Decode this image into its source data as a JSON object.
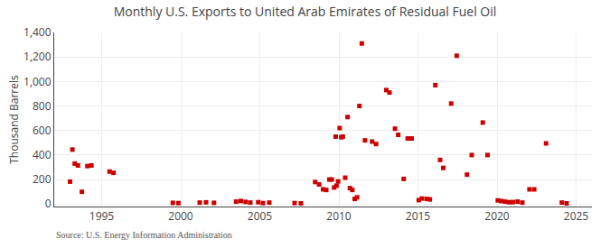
{
  "chart_data": {
    "type": "scatter",
    "title": "Monthly U.S. Exports to United Arab Emirates of Residual Fuel Oil",
    "ylabel": "Thousand Barrels",
    "annotations": [
      "Source: U.S. Energy Information Administration"
    ],
    "color": "#cc0000",
    "marker": "square",
    "grid": true,
    "xlim": [
      1992.0,
      2026.0
    ],
    "ylim": [
      -20,
      1400
    ],
    "xticks": [
      1995,
      2000,
      2005,
      2010,
      2015,
      2020,
      2025
    ],
    "yticks": [
      0,
      200,
      400,
      600,
      800,
      {
        "value": 1000,
        "label": "1,000"
      },
      {
        "value": 1200,
        "label": "1,200"
      },
      {
        "value": 1400,
        "label": "1,400"
      }
    ],
    "x": [
      1993.0,
      1993.15,
      1993.3,
      1993.5,
      1993.75,
      1994.1,
      1994.35,
      1995.5,
      1995.75,
      1999.5,
      1999.85,
      2001.2,
      2001.6,
      2002.1,
      2003.5,
      2003.8,
      2004.1,
      2004.4,
      2004.9,
      2005.2,
      2005.6,
      2007.2,
      2007.6,
      2008.5,
      2008.75,
      2009.0,
      2009.2,
      2009.4,
      2009.55,
      2009.7,
      2009.85,
      2009.95,
      2009.8,
      2010.05,
      2010.15,
      2010.25,
      2010.4,
      2010.55,
      2010.7,
      2010.85,
      2011.0,
      2011.15,
      2011.3,
      2011.45,
      2011.65,
      2012.1,
      2012.35,
      2013.0,
      2013.2,
      2013.55,
      2013.75,
      2014.1,
      2014.35,
      2014.6,
      2015.05,
      2015.25,
      2015.55,
      2015.75,
      2016.1,
      2016.4,
      2016.6,
      2017.1,
      2017.45,
      2018.1,
      2018.4,
      2019.1,
      2019.4,
      2020.05,
      2020.25,
      2020.5,
      2020.75,
      2021.0,
      2021.3,
      2021.6,
      2022.05,
      2022.35,
      2023.1,
      2024.1,
      2024.4
    ],
    "values": [
      183,
      445,
      330,
      315,
      100,
      310,
      315,
      265,
      255,
      10,
      8,
      12,
      14,
      10,
      20,
      25,
      18,
      12,
      15,
      8,
      12,
      8,
      6,
      180,
      160,
      120,
      115,
      200,
      200,
      135,
      150,
      185,
      550,
      620,
      545,
      550,
      215,
      710,
      130,
      115,
      42,
      55,
      800,
      1310,
      520,
      510,
      490,
      930,
      910,
      615,
      565,
      205,
      535,
      535,
      32,
      45,
      42,
      38,
      970,
      360,
      295,
      820,
      1210,
      240,
      400,
      665,
      400,
      30,
      25,
      20,
      15,
      16,
      20,
      12,
      120,
      120,
      495,
      12,
      6
    ]
  }
}
